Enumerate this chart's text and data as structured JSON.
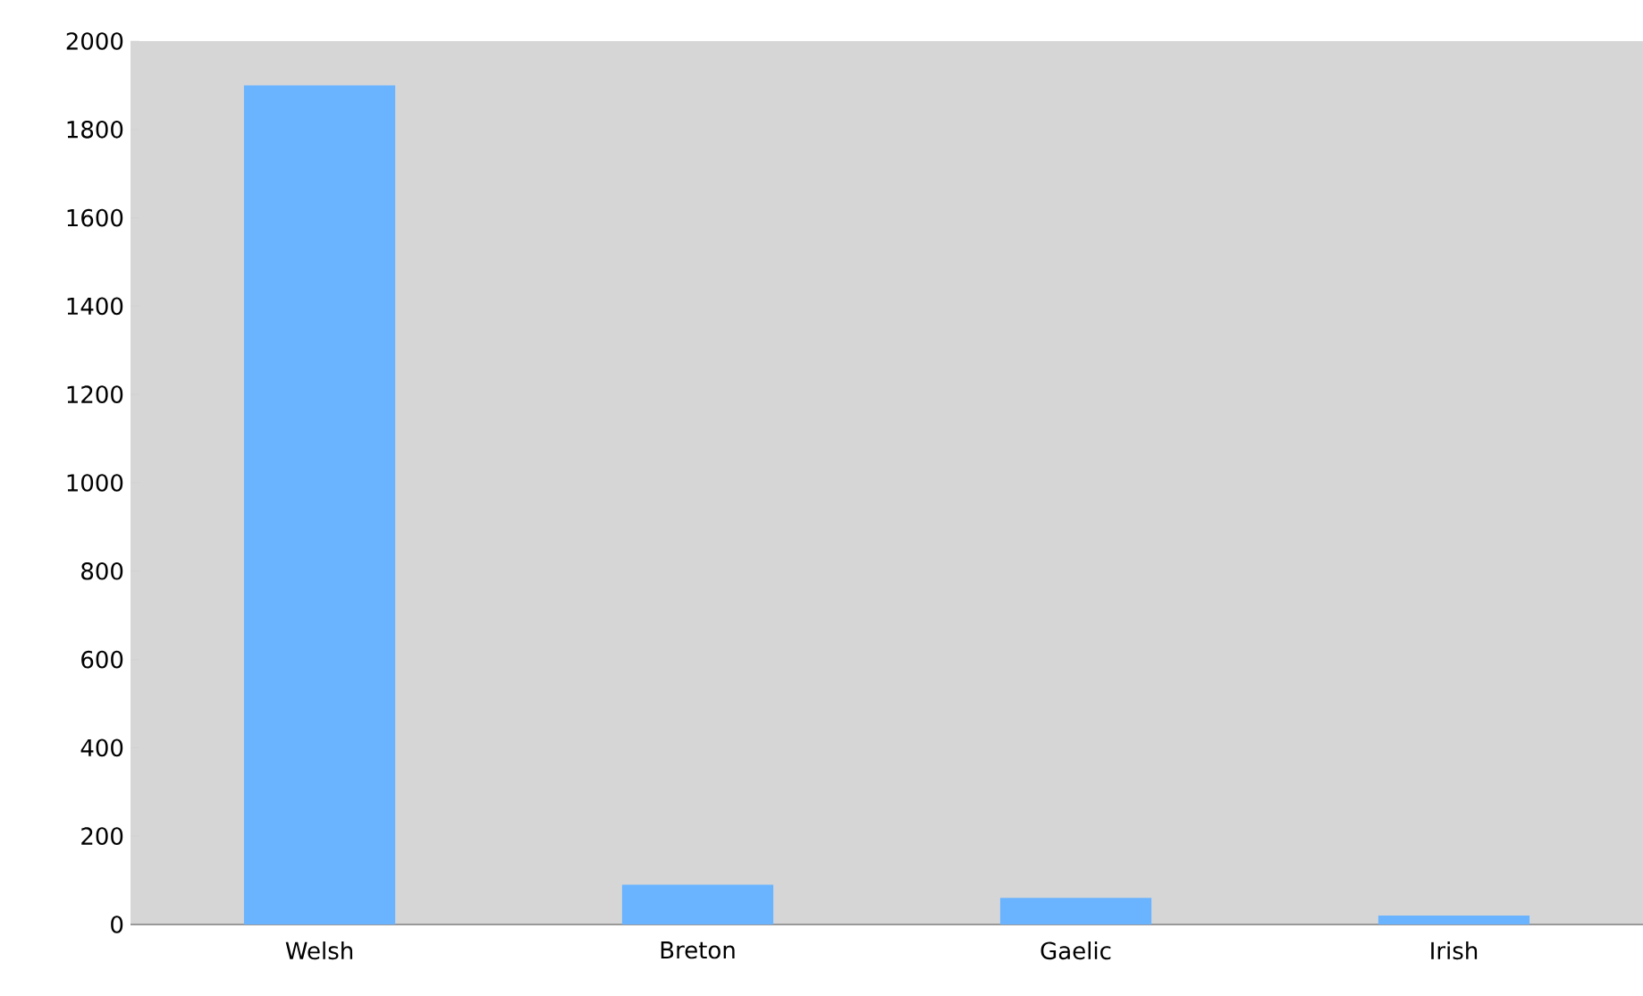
{
  "chart_data": {
    "type": "bar",
    "categories": [
      "Welsh",
      "Breton",
      "Gaelic",
      "Irish"
    ],
    "values": [
      1900,
      90,
      60,
      20
    ],
    "color": "#6ab4ff",
    "ylim": [
      0,
      2000
    ],
    "yticks": [
      0,
      200,
      400,
      600,
      800,
      1000,
      1200,
      1400,
      1600,
      1800,
      2000
    ]
  }
}
